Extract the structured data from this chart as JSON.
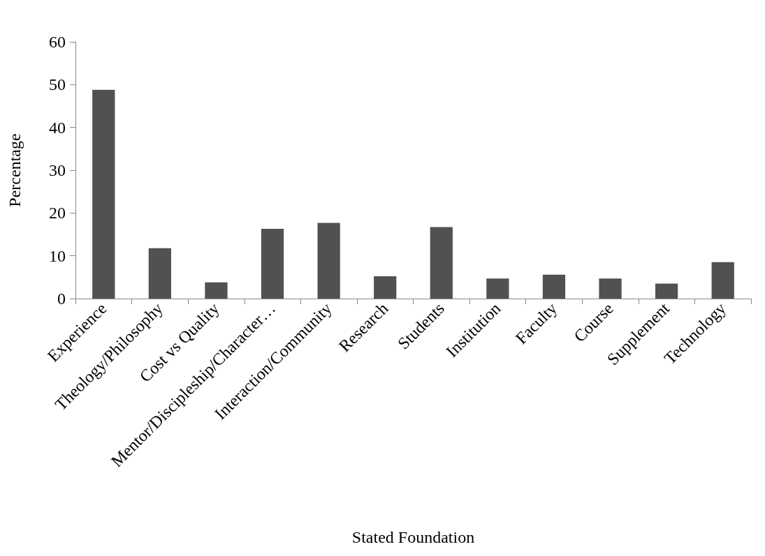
{
  "chart_data": {
    "type": "bar",
    "xlabel": "Stated Foundation",
    "ylabel": "Percentage",
    "categories": [
      "Experience",
      "Theology/Philosophy",
      "Cost vs Quality",
      "Mentor/Discipleship/Character…",
      "Interaction/Community",
      "Research",
      "Students",
      "Institution",
      "Faculty",
      "Course",
      "Supplement",
      "Technology"
    ],
    "values": [
      48.8,
      11.8,
      3.8,
      16.3,
      17.7,
      5.2,
      16.7,
      4.7,
      5.6,
      4.7,
      3.5,
      8.5
    ],
    "color": "#515151",
    "ylim": [
      0,
      60
    ],
    "yticks": [
      0,
      10,
      20,
      30,
      40,
      50,
      60
    ],
    "grid": false
  }
}
